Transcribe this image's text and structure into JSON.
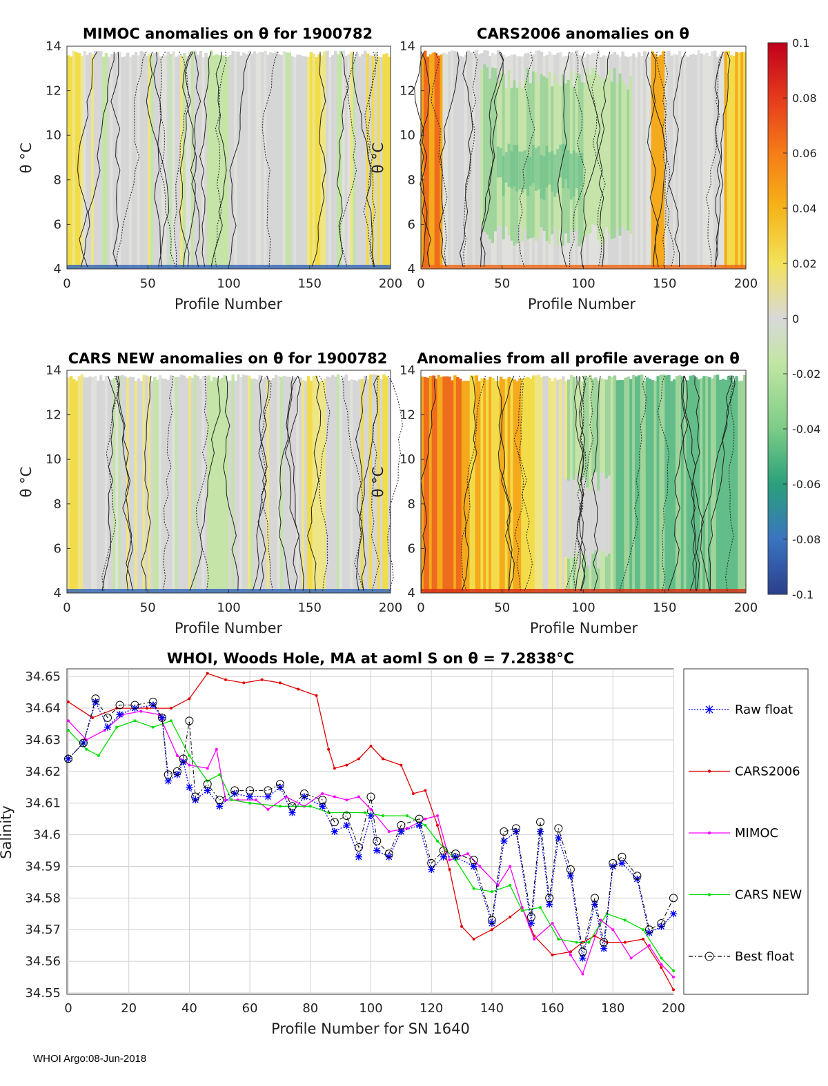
{
  "footer": "WHOI Argo:08-Jun-2018",
  "colorbar": {
    "ticks": [
      "0.1",
      "0.08",
      "0.06",
      "0.04",
      "0.02",
      "0",
      "-0.02",
      "-0.04",
      "-0.06",
      "-0.08",
      "-0.1"
    ]
  },
  "chart_data": [
    {
      "type": "heatmap",
      "title": "MIMOC anomalies on θ  for 1900782",
      "xlabel": "Profile Number",
      "ylabel": "θ °C",
      "xlim": [
        0,
        200
      ],
      "ylim": [
        4,
        14
      ],
      "xticks": [
        0,
        50,
        100,
        150,
        200
      ],
      "yticks": [
        4,
        6,
        8,
        10,
        12,
        14
      ],
      "color_range": [
        -0.1,
        0.1
      ]
    },
    {
      "type": "heatmap",
      "title": "CARS2006 anomalies on θ",
      "xlabel": "Profile Number",
      "ylabel": "θ °C",
      "xlim": [
        0,
        200
      ],
      "ylim": [
        4,
        14
      ],
      "xticks": [
        0,
        50,
        100,
        150,
        200
      ],
      "yticks": [
        4,
        6,
        8,
        10,
        12,
        14
      ],
      "color_range": [
        -0.1,
        0.1
      ]
    },
    {
      "type": "heatmap",
      "title": "CARS NEW anomalies on θ for 1900782",
      "xlabel": "Profile Number",
      "ylabel": "θ °C",
      "xlim": [
        0,
        200
      ],
      "ylim": [
        4,
        14
      ],
      "xticks": [
        0,
        50,
        100,
        150,
        200
      ],
      "yticks": [
        4,
        6,
        8,
        10,
        12,
        14
      ],
      "color_range": [
        -0.1,
        0.1
      ]
    },
    {
      "type": "heatmap",
      "title": "Anomalies from all profile average on θ",
      "xlabel": "Profile Number",
      "ylabel": "θ °C",
      "xlim": [
        0,
        200
      ],
      "ylim": [
        4,
        14
      ],
      "xticks": [
        0,
        50,
        100,
        150,
        200
      ],
      "yticks": [
        4,
        6,
        8,
        10,
        12,
        14
      ],
      "color_range": [
        -0.1,
        0.1
      ]
    },
    {
      "type": "line",
      "title": "WHOI, Woods Hole, MA at aoml S on θ = 7.2838°C",
      "xlabel": "Profile Number for SN 1640",
      "ylabel": "Salinity",
      "xlim": [
        0,
        200
      ],
      "ylim": [
        34.55,
        34.652
      ],
      "xticks": [
        0,
        20,
        40,
        60,
        80,
        100,
        120,
        140,
        160,
        180,
        200
      ],
      "yticks": [
        "34.55",
        "34.56",
        "34.57",
        "34.58",
        "34.59",
        "34.6",
        "34.61",
        "34.62",
        "34.63",
        "34.64",
        "34.65"
      ],
      "series": [
        {
          "name": "Raw float",
          "color": "#0000ff",
          "marker": "asterisk",
          "points": [
            [
              0,
              34.624
            ],
            [
              5,
              34.629
            ],
            [
              9,
              34.642
            ],
            [
              13,
              34.634
            ],
            [
              17,
              34.638
            ],
            [
              22,
              34.64
            ],
            [
              28,
              34.641
            ],
            [
              31,
              34.637
            ],
            [
              33,
              34.617
            ],
            [
              36,
              34.619
            ],
            [
              38,
              34.623
            ],
            [
              40,
              34.615
            ],
            [
              42,
              34.611
            ],
            [
              46,
              34.614
            ],
            [
              50,
              34.609
            ],
            [
              55,
              34.613
            ],
            [
              60,
              34.612
            ],
            [
              66,
              34.612
            ],
            [
              70,
              34.615
            ],
            [
              74,
              34.607
            ],
            [
              78,
              34.612
            ],
            [
              84,
              34.609
            ],
            [
              88,
              34.601
            ],
            [
              92,
              34.603
            ],
            [
              96,
              34.593
            ],
            [
              100,
              34.606
            ],
            [
              102,
              34.595
            ],
            [
              106,
              34.593
            ],
            [
              110,
              34.601
            ],
            [
              116,
              34.603
            ],
            [
              120,
              34.589
            ],
            [
              124,
              34.593
            ],
            [
              128,
              34.593
            ],
            [
              134,
              34.59
            ],
            [
              140,
              34.572
            ],
            [
              144,
              34.598
            ],
            [
              148,
              34.601
            ],
            [
              153,
              34.572
            ],
            [
              156,
              34.601
            ],
            [
              159,
              34.578
            ],
            [
              162,
              34.599
            ],
            [
              166,
              34.587
            ],
            [
              170,
              34.561
            ],
            [
              174,
              34.578
            ],
            [
              177,
              34.564
            ],
            [
              180,
              34.59
            ],
            [
              183,
              34.591
            ],
            [
              188,
              34.586
            ],
            [
              192,
              34.569
            ],
            [
              196,
              34.571
            ],
            [
              200,
              34.575
            ]
          ]
        },
        {
          "name": "CARS2006",
          "color": "#e00000",
          "marker": "dot",
          "points": [
            [
              0,
              34.642
            ],
            [
              8,
              34.637
            ],
            [
              16,
              34.64
            ],
            [
              26,
              34.64
            ],
            [
              34,
              34.64
            ],
            [
              40,
              34.643
            ],
            [
              46,
              34.651
            ],
            [
              52,
              34.649
            ],
            [
              58,
              34.648
            ],
            [
              64,
              34.649
            ],
            [
              70,
              34.648
            ],
            [
              76,
              34.646
            ],
            [
              82,
              34.644
            ],
            [
              86,
              34.627
            ],
            [
              88,
              34.621
            ],
            [
              92,
              34.622
            ],
            [
              96,
              34.624
            ],
            [
              100,
              34.628
            ],
            [
              104,
              34.624
            ],
            [
              110,
              34.622
            ],
            [
              114,
              34.613
            ],
            [
              118,
              34.614
            ],
            [
              122,
              34.603
            ],
            [
              126,
              34.589
            ],
            [
              130,
              34.571
            ],
            [
              134,
              34.567
            ],
            [
              140,
              34.57
            ],
            [
              146,
              34.574
            ],
            [
              150,
              34.577
            ],
            [
              154,
              34.568
            ],
            [
              160,
              34.562
            ],
            [
              166,
              34.563
            ],
            [
              170,
              34.566
            ],
            [
              174,
              34.568
            ],
            [
              178,
              34.566
            ],
            [
              184,
              34.566
            ],
            [
              190,
              34.567
            ],
            [
              196,
              34.558
            ],
            [
              200,
              34.551
            ]
          ]
        },
        {
          "name": "MIMOC",
          "color": "#ff00ff",
          "marker": "dot",
          "points": [
            [
              0,
              34.636
            ],
            [
              6,
              34.63
            ],
            [
              12,
              34.633
            ],
            [
              18,
              34.638
            ],
            [
              24,
              34.639
            ],
            [
              30,
              34.638
            ],
            [
              36,
              34.625
            ],
            [
              40,
              34.622
            ],
            [
              46,
              34.621
            ],
            [
              49,
              34.627
            ],
            [
              52,
              34.611
            ],
            [
              56,
              34.611
            ],
            [
              62,
              34.611
            ],
            [
              66,
              34.608
            ],
            [
              72,
              34.612
            ],
            [
              78,
              34.609
            ],
            [
              84,
              34.613
            ],
            [
              88,
              34.612
            ],
            [
              92,
              34.611
            ],
            [
              96,
              34.612
            ],
            [
              100,
              34.608
            ],
            [
              106,
              34.601
            ],
            [
              112,
              34.602
            ],
            [
              118,
              34.605
            ],
            [
              122,
              34.606
            ],
            [
              126,
              34.592
            ],
            [
              132,
              34.594
            ],
            [
              136,
              34.59
            ],
            [
              142,
              34.584
            ],
            [
              146,
              34.59
            ],
            [
              150,
              34.577
            ],
            [
              154,
              34.567
            ],
            [
              160,
              34.572
            ],
            [
              166,
              34.562
            ],
            [
              170,
              34.556
            ],
            [
              176,
              34.573
            ],
            [
              180,
              34.57
            ],
            [
              186,
              34.561
            ],
            [
              192,
              34.565
            ],
            [
              196,
              34.559
            ],
            [
              200,
              34.555
            ]
          ]
        },
        {
          "name": "CARS NEW",
          "color": "#00dd00",
          "marker": "dot",
          "points": [
            [
              0,
              34.633
            ],
            [
              6,
              34.627
            ],
            [
              10,
              34.625
            ],
            [
              16,
              34.634
            ],
            [
              22,
              34.636
            ],
            [
              28,
              34.634
            ],
            [
              34,
              34.636
            ],
            [
              40,
              34.625
            ],
            [
              46,
              34.617
            ],
            [
              50,
              34.619
            ],
            [
              54,
              34.611
            ],
            [
              60,
              34.61
            ],
            [
              70,
              34.609
            ],
            [
              80,
              34.609
            ],
            [
              86,
              34.607
            ],
            [
              92,
              34.607
            ],
            [
              98,
              34.607
            ],
            [
              104,
              34.606
            ],
            [
              112,
              34.606
            ],
            [
              118,
              34.603
            ],
            [
              122,
              34.598
            ],
            [
              128,
              34.592
            ],
            [
              134,
              34.583
            ],
            [
              140,
              34.582
            ],
            [
              146,
              34.584
            ],
            [
              150,
              34.576
            ],
            [
              156,
              34.577
            ],
            [
              162,
              34.567
            ],
            [
              168,
              34.566
            ],
            [
              172,
              34.566
            ],
            [
              178,
              34.575
            ],
            [
              184,
              34.573
            ],
            [
              190,
              34.57
            ],
            [
              196,
              34.561
            ],
            [
              200,
              34.557
            ]
          ]
        },
        {
          "name": "Best float",
          "color": "#000000",
          "marker": "circle",
          "points": [
            [
              0,
              34.624
            ],
            [
              5,
              34.629
            ],
            [
              9,
              34.643
            ],
            [
              13,
              34.637
            ],
            [
              17,
              34.641
            ],
            [
              22,
              34.641
            ],
            [
              28,
              34.642
            ],
            [
              31,
              34.637
            ],
            [
              33,
              34.619
            ],
            [
              36,
              34.62
            ],
            [
              38,
              34.624
            ],
            [
              40,
              34.636
            ],
            [
              42,
              34.612
            ],
            [
              46,
              34.616
            ],
            [
              50,
              34.611
            ],
            [
              55,
              34.614
            ],
            [
              60,
              34.614
            ],
            [
              66,
              34.614
            ],
            [
              70,
              34.616
            ],
            [
              74,
              34.609
            ],
            [
              78,
              34.613
            ],
            [
              84,
              34.611
            ],
            [
              88,
              34.604
            ],
            [
              92,
              34.606
            ],
            [
              96,
              34.596
            ],
            [
              100,
              34.612
            ],
            [
              102,
              34.598
            ],
            [
              106,
              34.594
            ],
            [
              110,
              34.603
            ],
            [
              116,
              34.605
            ],
            [
              120,
              34.591
            ],
            [
              124,
              34.595
            ],
            [
              128,
              34.594
            ],
            [
              134,
              34.592
            ],
            [
              140,
              34.573
            ],
            [
              144,
              34.601
            ],
            [
              148,
              34.602
            ],
            [
              153,
              34.574
            ],
            [
              156,
              34.604
            ],
            [
              159,
              34.58
            ],
            [
              162,
              34.602
            ],
            [
              166,
              34.589
            ],
            [
              170,
              34.563
            ],
            [
              174,
              34.58
            ],
            [
              177,
              34.566
            ],
            [
              180,
              34.591
            ],
            [
              183,
              34.593
            ],
            [
              188,
              34.587
            ],
            [
              192,
              34.57
            ],
            [
              196,
              34.572
            ],
            [
              200,
              34.58
            ]
          ]
        }
      ]
    }
  ]
}
